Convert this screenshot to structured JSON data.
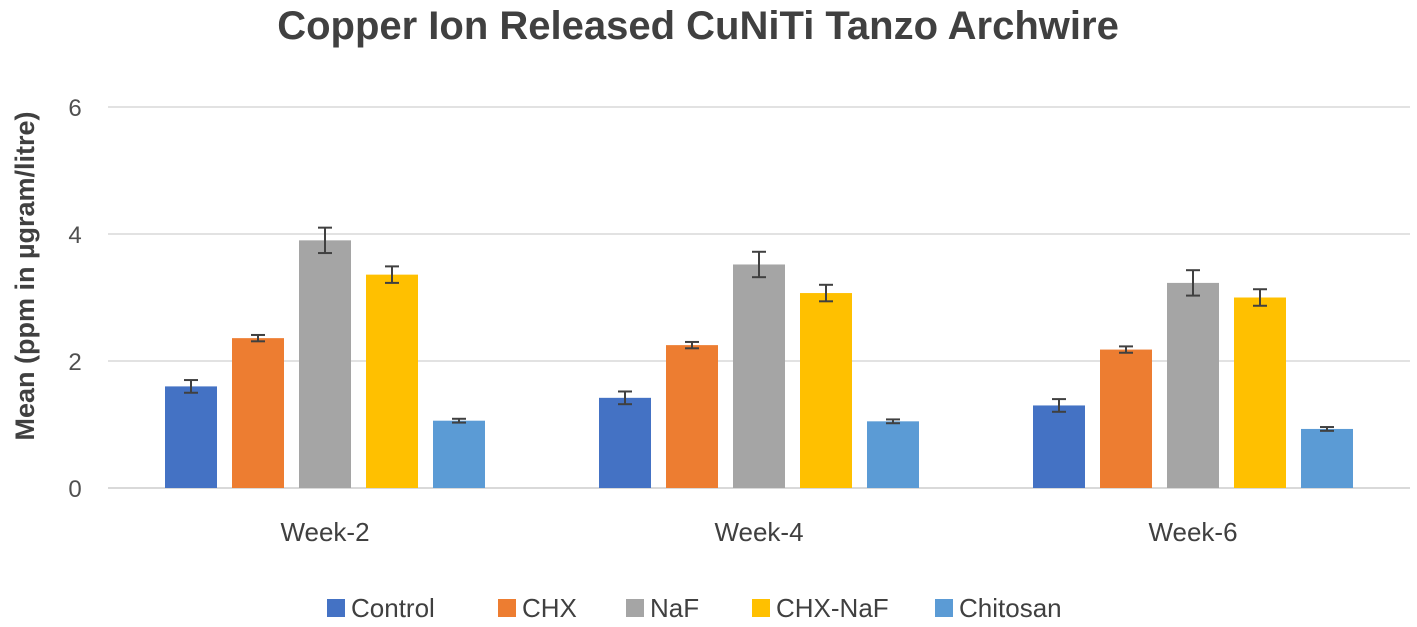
{
  "chart_data": {
    "type": "bar",
    "title": "Copper Ion Released CuNiTi Tanzo Archwire",
    "xlabel": "",
    "ylabel": "Mean (ppm in µgram/litre)",
    "ylim": [
      0,
      6
    ],
    "yticks": [
      "0",
      "2",
      "4",
      "6"
    ],
    "categories": [
      "Week-2",
      "Week-4",
      "Week-6"
    ],
    "series": [
      {
        "name": "Control",
        "color": "#4472C4",
        "values": [
          1.6,
          1.42,
          1.3
        ],
        "errors": [
          0.1,
          0.1,
          0.1
        ]
      },
      {
        "name": "CHX",
        "color": "#ED7D31",
        "values": [
          2.36,
          2.25,
          2.18
        ],
        "errors": [
          0.05,
          0.05,
          0.05
        ]
      },
      {
        "name": "NaF",
        "color": "#A5A5A5",
        "values": [
          3.9,
          3.52,
          3.23
        ],
        "errors": [
          0.2,
          0.2,
          0.2
        ]
      },
      {
        "name": "CHX-NaF",
        "color": "#FFC000",
        "values": [
          3.36,
          3.07,
          3.0
        ],
        "errors": [
          0.13,
          0.13,
          0.13
        ]
      },
      {
        "name": "Chitosan",
        "color": "#5B9BD5",
        "values": [
          1.06,
          1.05,
          0.93
        ],
        "errors": [
          0.03,
          0.03,
          0.03
        ]
      }
    ],
    "grid": true,
    "legend": "bottom"
  }
}
